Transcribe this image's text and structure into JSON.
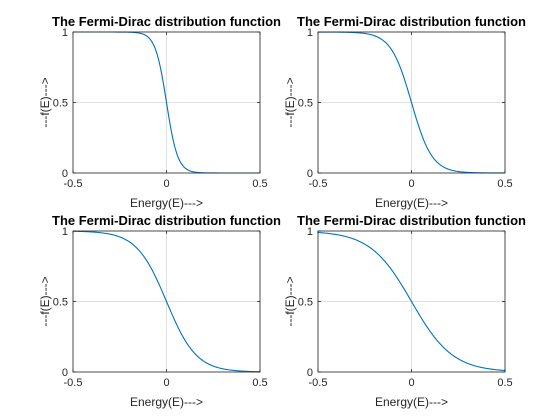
{
  "chart_data": [
    {
      "type": "line",
      "title": "The Fermi-Dirac distribution function",
      "xlabel": "Energy(E)--->",
      "ylabel": "---f(E)--->",
      "xlim": [
        -0.5,
        0.5
      ],
      "ylim": [
        0,
        1
      ],
      "xticks": [
        "-0.5",
        "0",
        "0.5"
      ],
      "yticks": [
        "0",
        "0.5",
        "1"
      ],
      "grid": true,
      "series": [
        {
          "kT": 0.03,
          "color": "#0072BD"
        }
      ]
    },
    {
      "type": "line",
      "title": "The Fermi-Dirac distribution function",
      "xlabel": "Energy(E)--->",
      "ylabel": "---f(E)--->",
      "xlim": [
        -0.5,
        0.5
      ],
      "ylim": [
        0,
        1
      ],
      "xticks": [
        "-0.5",
        "0",
        "0.5"
      ],
      "yticks": [
        "0",
        "0.5",
        "1"
      ],
      "grid": true,
      "series": [
        {
          "kT": 0.055,
          "color": "#0072BD"
        }
      ]
    },
    {
      "type": "line",
      "title": "The Fermi-Dirac distribution function",
      "xlabel": "Energy(E)--->",
      "ylabel": "---f(E)--->",
      "xlim": [
        -0.5,
        0.5
      ],
      "ylim": [
        0,
        1
      ],
      "xticks": [
        "-0.5",
        "0",
        "0.5"
      ],
      "yticks": [
        "0",
        "0.5",
        "1"
      ],
      "grid": true,
      "series": [
        {
          "kT": 0.08,
          "color": "#0072BD"
        }
      ]
    },
    {
      "type": "line",
      "title": "The Fermi-Dirac distribution function",
      "xlabel": "Energy(E)--->",
      "ylabel": "---f(E)--->",
      "xlim": [
        -0.5,
        0.5
      ],
      "ylim": [
        0,
        1
      ],
      "xticks": [
        "-0.5",
        "0",
        "0.5"
      ],
      "yticks": [
        "0",
        "0.5",
        "1"
      ],
      "grid": true,
      "series": [
        {
          "kT": 0.11,
          "color": "#0072BD"
        }
      ]
    }
  ]
}
